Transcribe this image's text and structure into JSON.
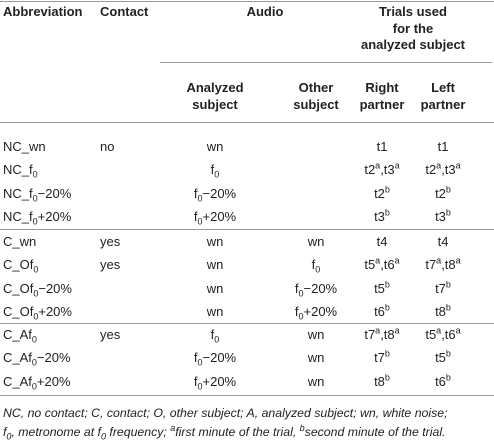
{
  "table": {
    "header": {
      "top": [
        "Abbreviation",
        "Contact",
        "Audio",
        [
          "Trials used",
          "for the",
          "analyzed subject"
        ]
      ],
      "sub": [
        [
          "Analyzed",
          "subject"
        ],
        [
          "Other",
          "subject"
        ],
        [
          "Right",
          "partner"
        ],
        [
          "Left",
          "partner"
        ]
      ]
    },
    "groups": [
      [
        [
          "NC_wn",
          "no",
          "wn",
          null,
          "t1",
          "t1"
        ],
        [
          [
            "NC_f",
            {
              "sub": "0"
            }
          ],
          null,
          [
            "f",
            {
              "sub": "0"
            }
          ],
          null,
          [
            "t2",
            {
              "sup": "a"
            },
            ",t3",
            {
              "sup": "a"
            }
          ],
          [
            "t2",
            {
              "sup": "a"
            },
            ",t3",
            {
              "sup": "a"
            }
          ]
        ],
        [
          [
            "NC_f",
            {
              "sub": "0"
            },
            "−20%"
          ],
          null,
          [
            "f",
            {
              "sub": "0"
            },
            "−20%"
          ],
          null,
          [
            "t2",
            {
              "sup": "b"
            }
          ],
          [
            "t2",
            {
              "sup": "b"
            }
          ]
        ],
        [
          [
            "NC_f",
            {
              "sub": "0"
            },
            "+20%"
          ],
          null,
          [
            "f",
            {
              "sub": "0"
            },
            "+20%"
          ],
          null,
          [
            "t3",
            {
              "sup": "b"
            }
          ],
          [
            "t3",
            {
              "sup": "b"
            }
          ]
        ]
      ],
      [
        [
          "C_wn",
          "yes",
          "wn",
          "wn",
          "t4",
          "t4"
        ],
        [
          [
            "C_Of",
            {
              "sub": "0"
            }
          ],
          "yes",
          "wn",
          [
            "f",
            {
              "sub": "0"
            }
          ],
          [
            "t5",
            {
              "sup": "a"
            },
            ",t6",
            {
              "sup": "a"
            }
          ],
          [
            "t7",
            {
              "sup": "a"
            },
            ",t8",
            {
              "sup": "a"
            }
          ]
        ],
        [
          [
            "C_Of",
            {
              "sub": "0"
            },
            "−20%"
          ],
          null,
          "wn",
          [
            "f",
            {
              "sub": "0"
            },
            "−20%"
          ],
          [
            "t5",
            {
              "sup": "b"
            }
          ],
          [
            "t7",
            {
              "sup": "b"
            }
          ]
        ],
        [
          [
            "C_Of",
            {
              "sub": "0"
            },
            "+20%"
          ],
          null,
          "wn",
          [
            "f",
            {
              "sub": "0"
            },
            "+20%"
          ],
          [
            "t6",
            {
              "sup": "b"
            }
          ],
          [
            "t8",
            {
              "sup": "b"
            }
          ]
        ]
      ],
      [
        [
          [
            "C_Af",
            {
              "sub": "0"
            }
          ],
          "yes",
          [
            "f",
            {
              "sub": "0"
            }
          ],
          "wn",
          [
            "t7",
            {
              "sup": "a"
            },
            ",t8",
            {
              "sup": "a"
            }
          ],
          [
            "t5",
            {
              "sup": "a"
            },
            ",t6",
            {
              "sup": "a"
            }
          ]
        ],
        [
          [
            "C_Af",
            {
              "sub": "0"
            },
            "−20%"
          ],
          null,
          [
            "f",
            {
              "sub": "0"
            },
            "−20%"
          ],
          "wn",
          [
            "t7",
            {
              "sup": "b"
            }
          ],
          [
            "t5",
            {
              "sup": "b"
            }
          ]
        ],
        [
          [
            "C_Af",
            {
              "sub": "0"
            },
            "+20%"
          ],
          null,
          [
            "f",
            {
              "sub": "0"
            },
            "+20%"
          ],
          "wn",
          [
            "t8",
            {
              "sup": "b"
            }
          ],
          [
            "t6",
            {
              "sup": "b"
            }
          ]
        ]
      ]
    ],
    "footnote": [
      [
        "NC, no contact; C, contact; O, other subject; A, analyzed subject; wn, white noise;"
      ],
      [
        "f",
        {
          "sub": "0"
        },
        ", metronome at f",
        {
          "sub": "0"
        },
        " frequency; ",
        {
          "sup": "a"
        },
        "first minute of the trial, ",
        {
          "sup": "b"
        },
        "second minute of the trial."
      ]
    ]
  }
}
